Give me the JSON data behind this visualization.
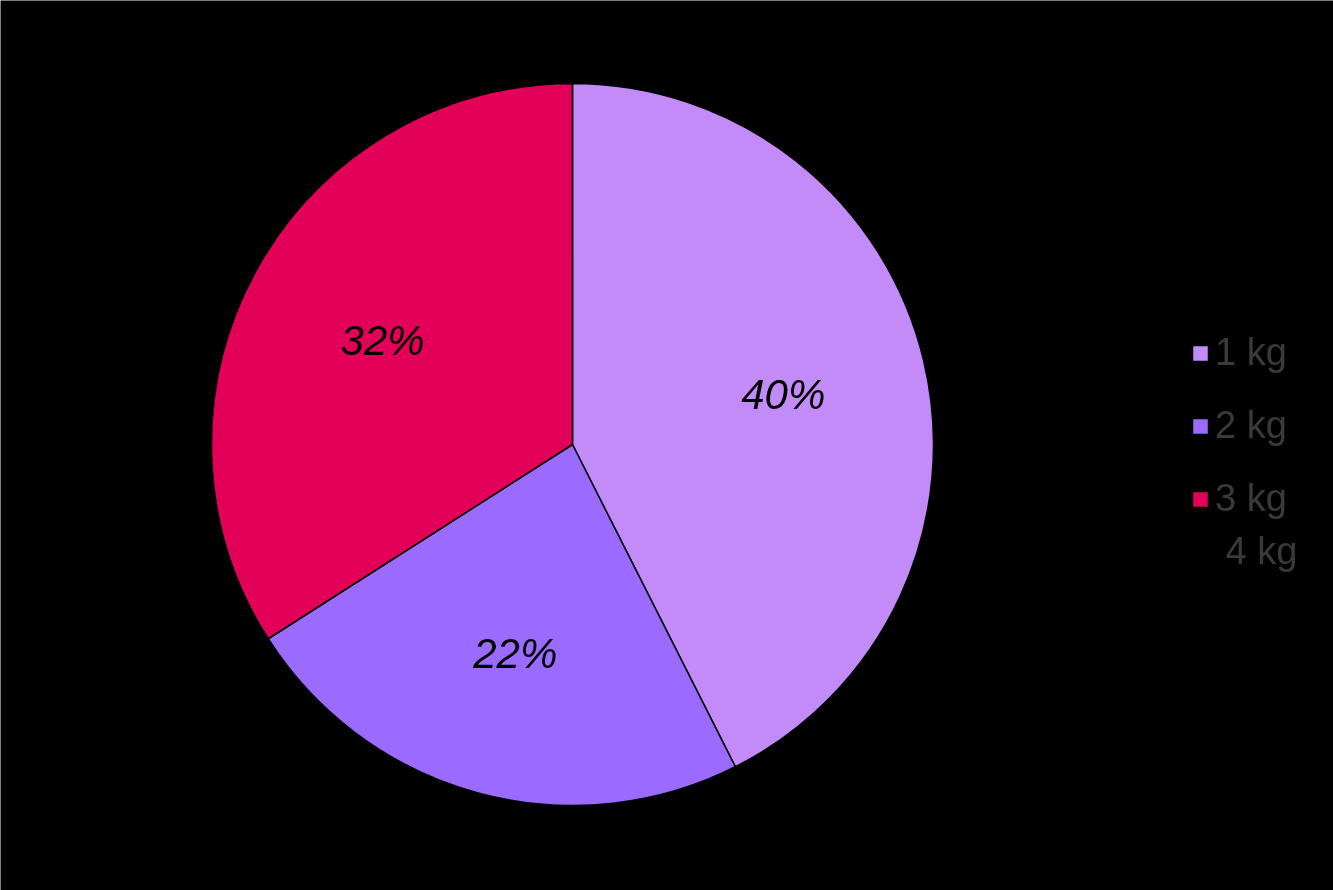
{
  "chart_data": {
    "type": "pie",
    "categories": [
      "1 kg",
      "2 kg",
      "3 kg",
      "4 kg"
    ],
    "values": [
      40,
      22,
      32,
      null
    ],
    "value_labels": [
      "40%",
      "22%",
      "32%",
      null
    ],
    "colors": [
      "#c38bf7",
      "#9b6bff",
      "#e30059",
      null
    ],
    "legend": "right"
  }
}
